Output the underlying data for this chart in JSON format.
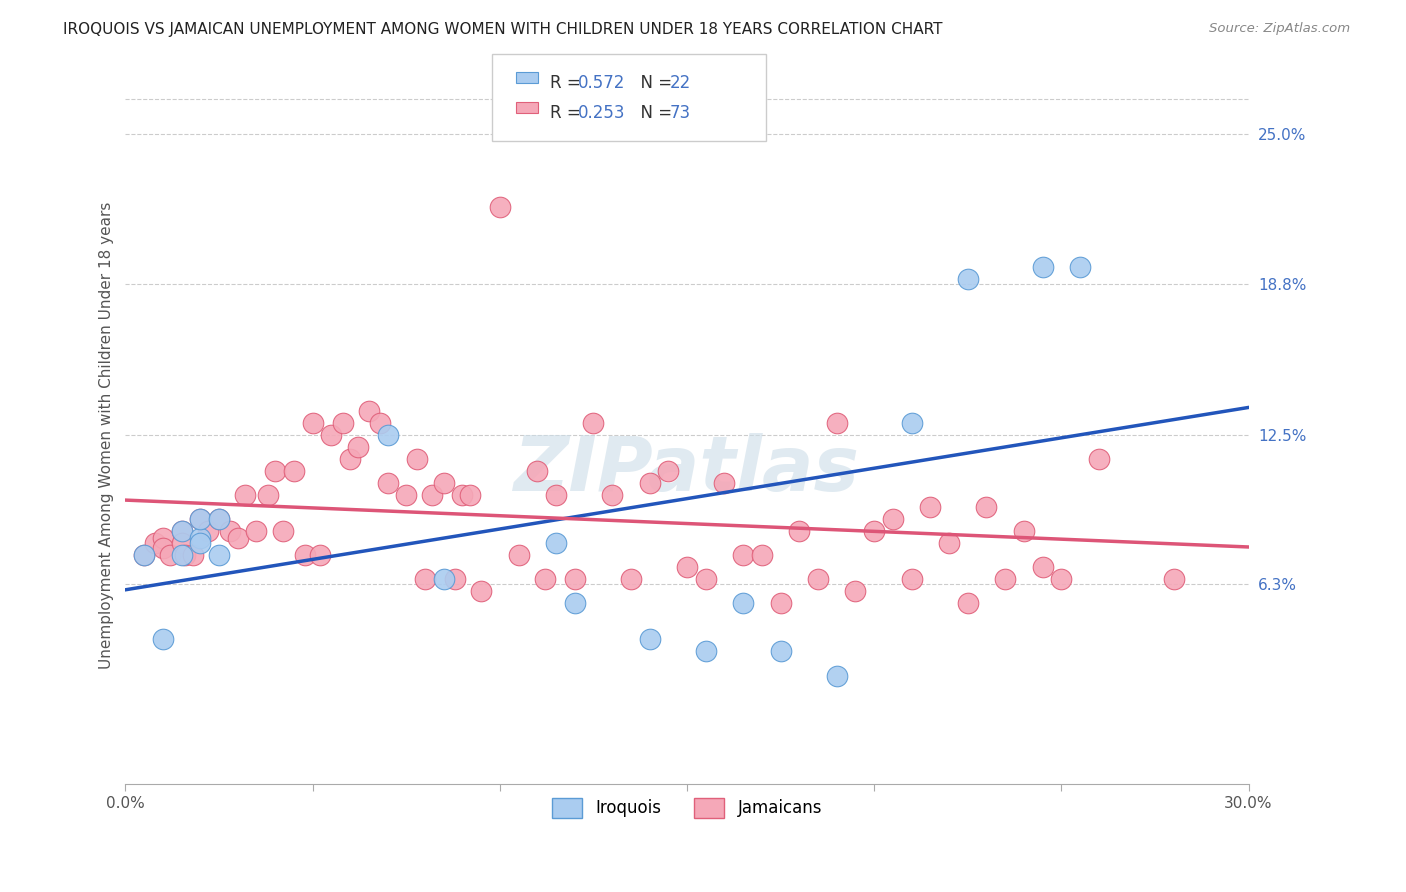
{
  "title": "IROQUOIS VS JAMAICAN UNEMPLOYMENT AMONG WOMEN WITH CHILDREN UNDER 18 YEARS CORRELATION CHART",
  "source": "Source: ZipAtlas.com",
  "ylabel": "Unemployment Among Women with Children Under 18 years",
  "xlim": [
    0.0,
    0.3
  ],
  "ylim": [
    -0.02,
    0.27
  ],
  "xticks": [
    0.0,
    0.05,
    0.1,
    0.15,
    0.2,
    0.25,
    0.3
  ],
  "xticklabels": [
    "0.0%",
    "",
    "",
    "",
    "",
    "",
    "30.0%"
  ],
  "right_yticks": [
    0.063,
    0.125,
    0.188,
    0.25
  ],
  "right_yticklabels": [
    "6.3%",
    "12.5%",
    "18.8%",
    "25.0%"
  ],
  "iroquois_color": "#aaccf0",
  "iroquois_edge": "#5b9bd5",
  "jamaicans_color": "#f5a8b8",
  "jamaicans_edge": "#e0607a",
  "blue_line_color": "#2255bb",
  "pink_line_color": "#dd5577",
  "grid_color": "#cccccc",
  "iroquois_x": [
    0.005,
    0.01,
    0.015,
    0.015,
    0.02,
    0.02,
    0.02,
    0.025,
    0.025,
    0.07,
    0.085,
    0.115,
    0.12,
    0.14,
    0.155,
    0.165,
    0.175,
    0.19,
    0.21,
    0.225,
    0.245,
    0.255
  ],
  "iroquois_y": [
    0.075,
    0.04,
    0.085,
    0.075,
    0.082,
    0.08,
    0.09,
    0.075,
    0.09,
    0.125,
    0.065,
    0.08,
    0.055,
    0.04,
    0.035,
    0.055,
    0.035,
    0.025,
    0.13,
    0.19,
    0.195,
    0.195
  ],
  "jamaicans_x": [
    0.005,
    0.008,
    0.01,
    0.01,
    0.012,
    0.015,
    0.015,
    0.016,
    0.018,
    0.02,
    0.022,
    0.025,
    0.028,
    0.03,
    0.032,
    0.035,
    0.038,
    0.04,
    0.042,
    0.045,
    0.048,
    0.05,
    0.052,
    0.055,
    0.058,
    0.06,
    0.062,
    0.065,
    0.068,
    0.07,
    0.075,
    0.078,
    0.08,
    0.082,
    0.085,
    0.088,
    0.09,
    0.092,
    0.095,
    0.1,
    0.105,
    0.11,
    0.112,
    0.115,
    0.12,
    0.125,
    0.13,
    0.135,
    0.14,
    0.145,
    0.15,
    0.155,
    0.16,
    0.165,
    0.17,
    0.175,
    0.18,
    0.185,
    0.19,
    0.195,
    0.2,
    0.205,
    0.21,
    0.215,
    0.22,
    0.225,
    0.23,
    0.235,
    0.24,
    0.245,
    0.25,
    0.26,
    0.28
  ],
  "jamaicans_y": [
    0.075,
    0.08,
    0.082,
    0.078,
    0.075,
    0.085,
    0.08,
    0.075,
    0.075,
    0.09,
    0.085,
    0.09,
    0.085,
    0.082,
    0.1,
    0.085,
    0.1,
    0.11,
    0.085,
    0.11,
    0.075,
    0.13,
    0.075,
    0.125,
    0.13,
    0.115,
    0.12,
    0.135,
    0.13,
    0.105,
    0.1,
    0.115,
    0.065,
    0.1,
    0.105,
    0.065,
    0.1,
    0.1,
    0.06,
    0.22,
    0.075,
    0.11,
    0.065,
    0.1,
    0.065,
    0.13,
    0.1,
    0.065,
    0.105,
    0.11,
    0.07,
    0.065,
    0.105,
    0.075,
    0.075,
    0.055,
    0.085,
    0.065,
    0.13,
    0.06,
    0.085,
    0.09,
    0.065,
    0.095,
    0.08,
    0.055,
    0.095,
    0.065,
    0.085,
    0.07,
    0.065,
    0.115,
    0.065
  ]
}
